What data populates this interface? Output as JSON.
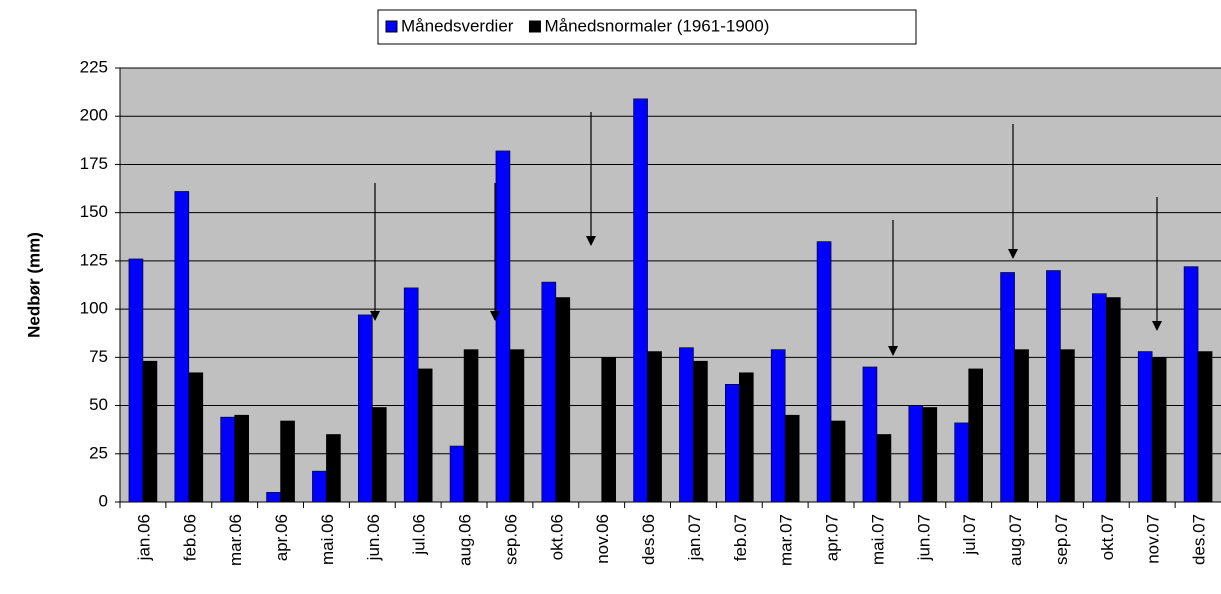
{
  "chart_data": {
    "type": "bar",
    "y_label": "Nedbør (mm)",
    "categories": [
      "jan.06",
      "feb.06",
      "mar.06",
      "apr.06",
      "mai.06",
      "jun.06",
      "jul.06",
      "aug.06",
      "sep.06",
      "okt.06",
      "nov.06",
      "des.06",
      "jan.07",
      "feb.07",
      "mar.07",
      "apr.07",
      "mai.07",
      "jun.07",
      "jul.07",
      "aug.07",
      "sep.07",
      "okt.07",
      "nov.07",
      "des.07"
    ],
    "series": [
      {
        "name": "Månedsverdier",
        "color": "#0000ff",
        "values": [
          126,
          161,
          44,
          5,
          16,
          97,
          111,
          29,
          182,
          114,
          null,
          209,
          80,
          61,
          79,
          135,
          70,
          50,
          41,
          119,
          120,
          108,
          78,
          122
        ]
      },
      {
        "name": "Månedsnormaler (1961-1900)",
        "color": "#000000",
        "values": [
          73,
          67,
          45,
          42,
          35,
          49,
          69,
          79,
          79,
          106,
          75,
          78,
          73,
          67,
          45,
          42,
          35,
          49,
          69,
          79,
          79,
          106,
          75,
          78
        ]
      }
    ],
    "ylim": [
      0,
      225
    ],
    "yticks": [
      0,
      25,
      50,
      75,
      100,
      125,
      150,
      175,
      200,
      225
    ],
    "grid": true,
    "legend": "top"
  }
}
